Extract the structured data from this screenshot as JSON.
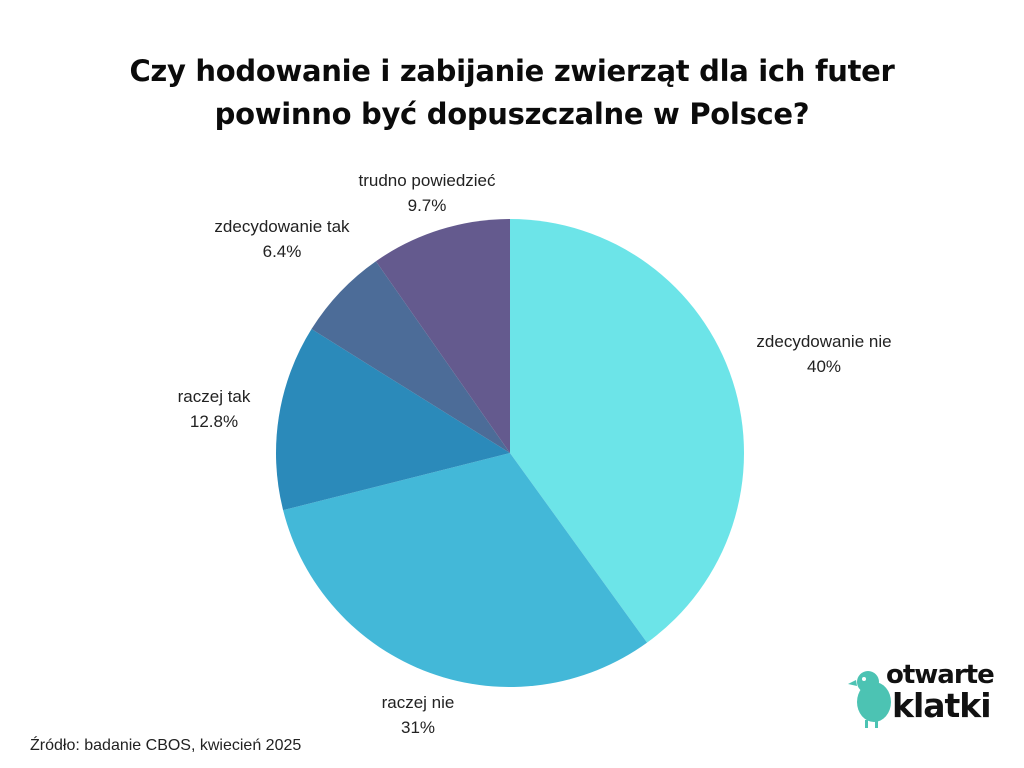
{
  "title": {
    "line1": "Czy hodowanie i zabijanie zwierząt dla ich futer",
    "line2": "powinno być dopuszczalne w Polsce?"
  },
  "chart_data": {
    "type": "pie",
    "start_angle": "12 o'clock",
    "direction": "clockwise",
    "slices": [
      {
        "label": "zdecydowanie nie",
        "value": 40,
        "value_label": "40%",
        "color": "#6ce4e8"
      },
      {
        "label": "raczej nie",
        "value": 31,
        "value_label": "31%",
        "color": "#43b8d8"
      },
      {
        "label": "raczej tak",
        "value": 12.8,
        "value_label": "12.8%",
        "color": "#2b8aba"
      },
      {
        "label": "zdecydowanie tak",
        "value": 6.4,
        "value_label": "6.4%",
        "color": "#4c6c98"
      },
      {
        "label": "trudno powiedzieć",
        "value": 9.7,
        "value_label": "9.7%",
        "color": "#645a8e"
      }
    ]
  },
  "source": "Źródło: badanie CBOS, kwiecień 2025",
  "logo": {
    "line1": "otwarte",
    "line2": "klatki",
    "bird_color": "#4cc3b3"
  }
}
